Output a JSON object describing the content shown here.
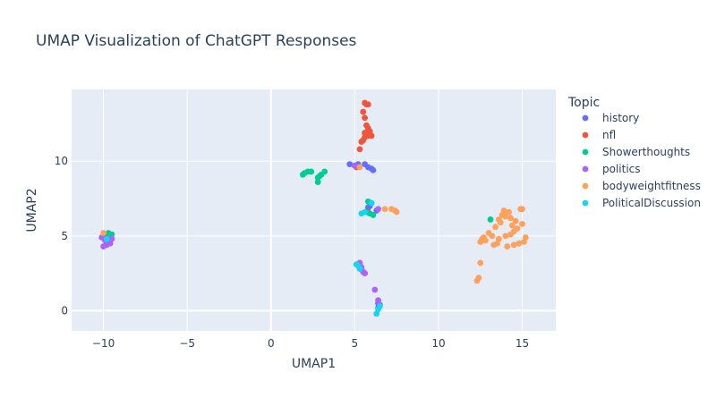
{
  "chart_data": {
    "type": "scatter",
    "title": "UMAP Visualization of ChatGPT Responses",
    "xlabel": "UMAP1",
    "ylabel": "UMAP2",
    "xlim": [
      -11.9,
      17.0
    ],
    "ylim": [
      -1.35,
      14.8
    ],
    "xticks": [
      -10,
      -5,
      0,
      5,
      10,
      15
    ],
    "yticks": [
      0,
      5,
      10
    ],
    "grid": true,
    "legend_title": "Topic",
    "legend_position": "right",
    "series": [
      {
        "name": "history",
        "color": "#636efa",
        "points": [
          [
            -9.8,
            4.9
          ],
          [
            -9.6,
            4.7
          ],
          [
            4.7,
            9.8
          ],
          [
            5.0,
            9.7
          ],
          [
            5.2,
            9.8
          ],
          [
            5.6,
            9.8
          ],
          [
            5.8,
            9.6
          ],
          [
            6.0,
            9.5
          ],
          [
            6.1,
            9.4
          ],
          [
            6.3,
            6.7
          ],
          [
            5.8,
            6.9
          ],
          [
            5.9,
            7.0
          ],
          [
            6.4,
            0.5
          ],
          [
            6.4,
            0.2
          ]
        ]
      },
      {
        "name": "nfl",
        "color": "#ef553b",
        "points": [
          [
            -9.9,
            5.1
          ],
          [
            5.6,
            13.9
          ],
          [
            5.7,
            13.8
          ],
          [
            5.8,
            13.8
          ],
          [
            5.5,
            13.3
          ],
          [
            5.6,
            12.9
          ],
          [
            5.7,
            12.4
          ],
          [
            5.8,
            12.2
          ],
          [
            5.9,
            12.0
          ],
          [
            5.6,
            11.9
          ],
          [
            5.8,
            11.7
          ],
          [
            5.6,
            11.6
          ],
          [
            5.5,
            11.4
          ],
          [
            5.4,
            11.3
          ],
          [
            5.3,
            10.8
          ],
          [
            6.0,
            11.7
          ],
          [
            5.1,
            9.6
          ],
          [
            5.8,
            6.6
          ]
        ]
      },
      {
        "name": "Showerthoughts",
        "color": "#00cc96",
        "points": [
          [
            -9.7,
            5.2
          ],
          [
            -9.5,
            5.1
          ],
          [
            -9.8,
            4.5
          ],
          [
            1.9,
            9.1
          ],
          [
            2.0,
            9.2
          ],
          [
            2.2,
            9.3
          ],
          [
            2.4,
            9.3
          ],
          [
            2.8,
            8.9
          ],
          [
            2.8,
            8.6
          ],
          [
            2.9,
            9.0
          ],
          [
            3.0,
            9.1
          ],
          [
            3.2,
            9.3
          ],
          [
            5.8,
            7.3
          ],
          [
            6.0,
            7.2
          ],
          [
            5.7,
            6.6
          ],
          [
            5.9,
            6.5
          ],
          [
            6.1,
            6.4
          ],
          [
            13.1,
            6.1
          ]
        ]
      },
      {
        "name": "politics",
        "color": "#ab63fa",
        "points": [
          [
            -10.1,
            4.9
          ],
          [
            -9.9,
            4.7
          ],
          [
            -9.8,
            4.4
          ],
          [
            -9.6,
            4.5
          ],
          [
            -9.5,
            4.8
          ],
          [
            -10.0,
            4.3
          ],
          [
            -9.7,
            4.6
          ],
          [
            5.0,
            9.7
          ],
          [
            5.3,
            3.2
          ],
          [
            5.4,
            2.9
          ],
          [
            5.5,
            2.6
          ],
          [
            5.6,
            2.5
          ],
          [
            6.2,
            1.4
          ],
          [
            6.4,
            0.7
          ],
          [
            6.5,
            0.4
          ],
          [
            6.4,
            6.8
          ]
        ]
      },
      {
        "name": "bodyweightfitness",
        "color": "#ffa15a",
        "points": [
          [
            -10.0,
            5.2
          ],
          [
            5.3,
            9.6
          ],
          [
            6.8,
            6.8
          ],
          [
            7.2,
            6.8
          ],
          [
            7.4,
            6.7
          ],
          [
            7.5,
            6.6
          ],
          [
            12.3,
            2.0
          ],
          [
            12.4,
            2.2
          ],
          [
            12.5,
            3.2
          ],
          [
            12.5,
            4.6
          ],
          [
            12.6,
            4.8
          ],
          [
            12.7,
            4.9
          ],
          [
            12.8,
            4.7
          ],
          [
            13.0,
            5.2
          ],
          [
            13.2,
            5.0
          ],
          [
            13.3,
            4.4
          ],
          [
            13.4,
            5.6
          ],
          [
            13.5,
            4.5
          ],
          [
            13.6,
            4.8
          ],
          [
            13.6,
            6.1
          ],
          [
            13.7,
            5.9
          ],
          [
            13.8,
            6.4
          ],
          [
            13.9,
            6.7
          ],
          [
            14.0,
            6.3
          ],
          [
            14.0,
            5.0
          ],
          [
            14.1,
            4.3
          ],
          [
            14.2,
            6.6
          ],
          [
            14.3,
            6.2
          ],
          [
            14.3,
            5.1
          ],
          [
            14.4,
            5.7
          ],
          [
            14.5,
            5.3
          ],
          [
            14.5,
            4.4
          ],
          [
            14.6,
            6.0
          ],
          [
            14.7,
            5.5
          ],
          [
            14.8,
            4.5
          ],
          [
            14.9,
            6.8
          ],
          [
            15.0,
            5.8
          ],
          [
            15.0,
            6.8
          ],
          [
            15.1,
            4.6
          ],
          [
            15.2,
            4.9
          ]
        ]
      },
      {
        "name": "PoliticalDiscussion",
        "color": "#19d3f3",
        "points": [
          [
            -9.8,
            4.8
          ],
          [
            5.1,
            3.1
          ],
          [
            5.2,
            3.0
          ],
          [
            5.3,
            2.8
          ],
          [
            5.4,
            6.5
          ],
          [
            5.6,
            6.6
          ],
          [
            6.3,
            -0.2
          ],
          [
            6.4,
            0.1
          ],
          [
            6.5,
            0.3
          ],
          [
            6.0,
            7.2
          ]
        ]
      }
    ]
  }
}
